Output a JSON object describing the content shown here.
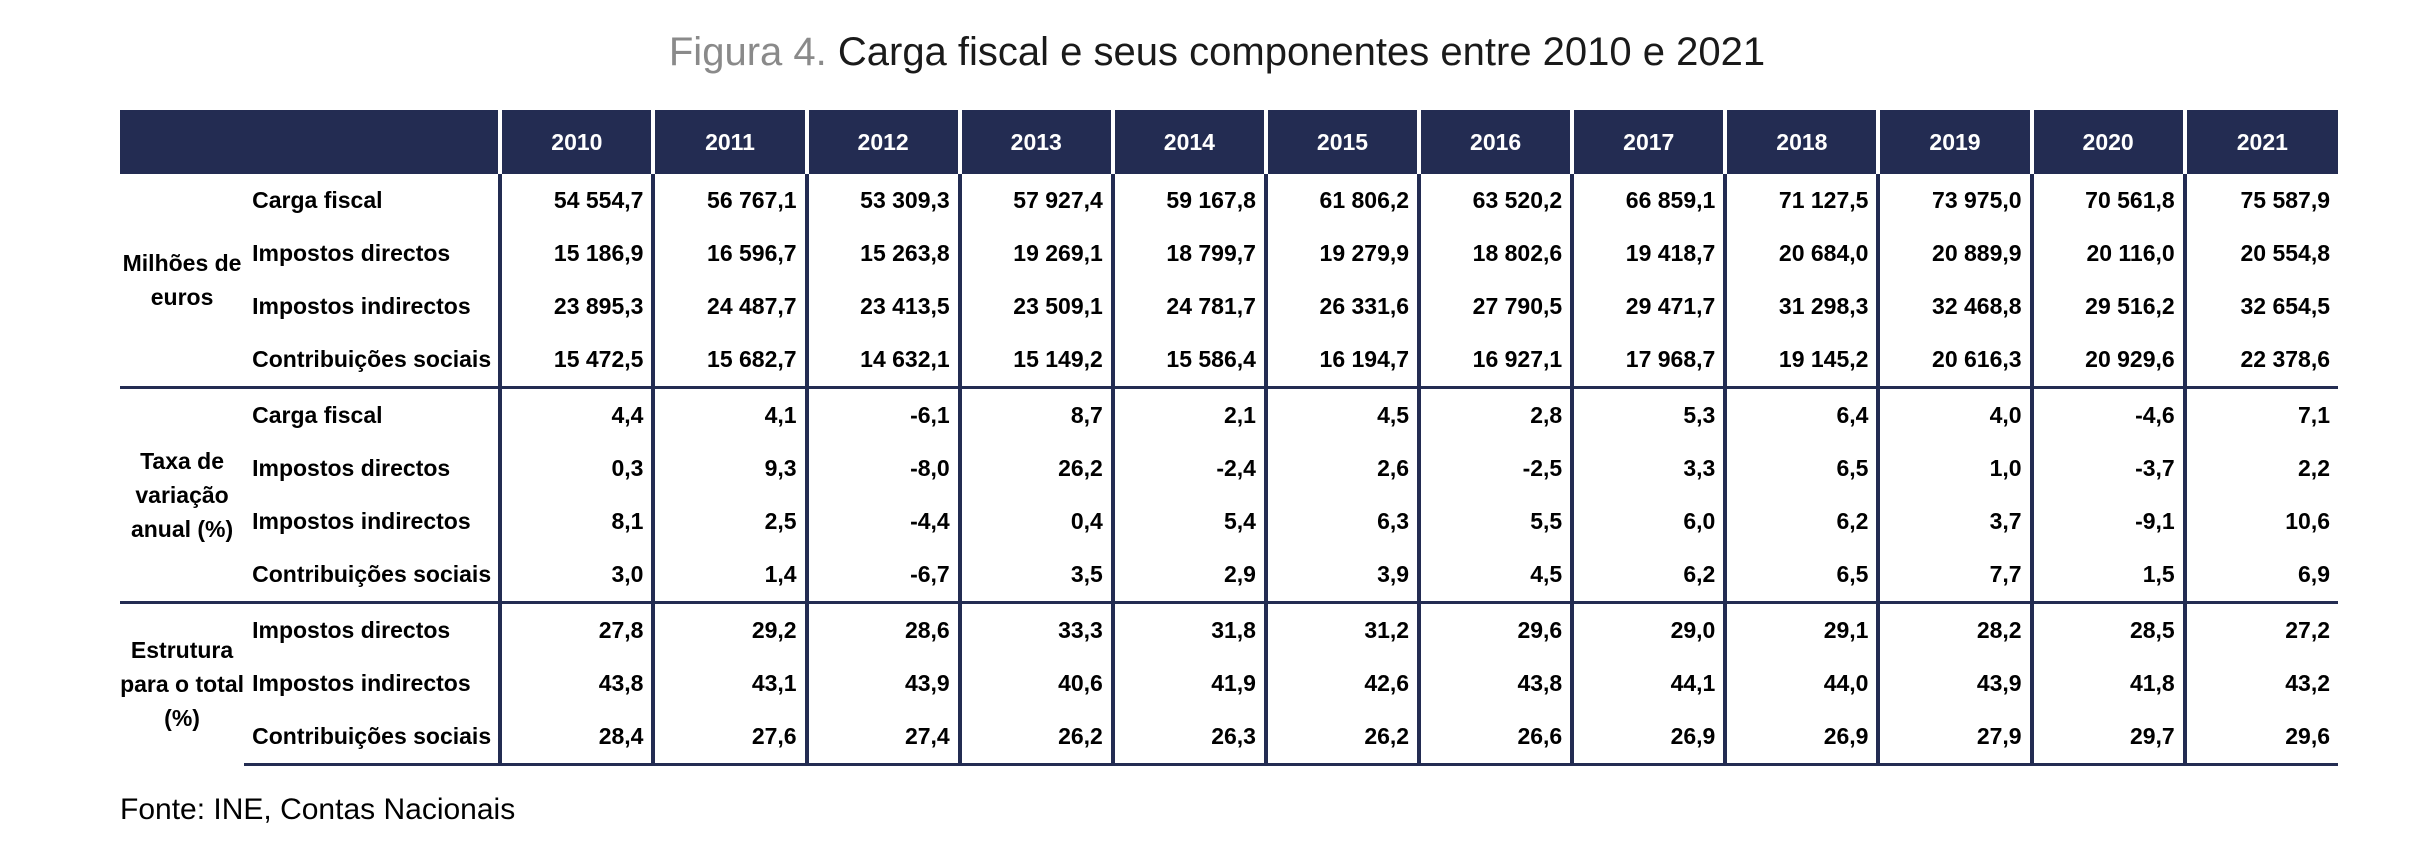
{
  "chart_data": {
    "type": "table",
    "title_prefix": "Figura 4.",
    "title": "Carga fiscal e seus componentes entre 2010 e 2021",
    "columns": [
      "2010",
      "2011",
      "2012",
      "2013",
      "2014",
      "2015",
      "2016",
      "2017",
      "2018",
      "2019",
      "2020",
      "2021"
    ],
    "groups": [
      {
        "label": "Milhões de euros",
        "rows": [
          {
            "label": "Carga fiscal",
            "values": [
              "54 554,7",
              "56 767,1",
              "53 309,3",
              "57 927,4",
              "59 167,8",
              "61 806,2",
              "63 520,2",
              "66 859,1",
              "71 127,5",
              "73 975,0",
              "70 561,8",
              "75 587,9"
            ]
          },
          {
            "label": "Impostos directos",
            "values": [
              "15 186,9",
              "16 596,7",
              "15 263,8",
              "19 269,1",
              "18 799,7",
              "19 279,9",
              "18 802,6",
              "19 418,7",
              "20 684,0",
              "20 889,9",
              "20 116,0",
              "20 554,8"
            ]
          },
          {
            "label": "Impostos indirectos",
            "values": [
              "23 895,3",
              "24 487,7",
              "23 413,5",
              "23 509,1",
              "24 781,7",
              "26 331,6",
              "27 790,5",
              "29 471,7",
              "31 298,3",
              "32 468,8",
              "29 516,2",
              "32 654,5"
            ]
          },
          {
            "label": "Contribuições sociais",
            "values": [
              "15 472,5",
              "15 682,7",
              "14 632,1",
              "15 149,2",
              "15 586,4",
              "16 194,7",
              "16 927,1",
              "17 968,7",
              "19 145,2",
              "20 616,3",
              "20 929,6",
              "22 378,6"
            ]
          }
        ]
      },
      {
        "label": "Taxa de variação anual (%)",
        "rows": [
          {
            "label": "Carga fiscal",
            "values": [
              "4,4",
              "4,1",
              "-6,1",
              "8,7",
              "2,1",
              "4,5",
              "2,8",
              "5,3",
              "6,4",
              "4,0",
              "-4,6",
              "7,1"
            ]
          },
          {
            "label": "Impostos directos",
            "values": [
              "0,3",
              "9,3",
              "-8,0",
              "26,2",
              "-2,4",
              "2,6",
              "-2,5",
              "3,3",
              "6,5",
              "1,0",
              "-3,7",
              "2,2"
            ]
          },
          {
            "label": "Impostos indirectos",
            "values": [
              "8,1",
              "2,5",
              "-4,4",
              "0,4",
              "5,4",
              "6,3",
              "5,5",
              "6,0",
              "6,2",
              "3,7",
              "-9,1",
              "10,6"
            ]
          },
          {
            "label": "Contribuições sociais",
            "values": [
              "3,0",
              "1,4",
              "-6,7",
              "3,5",
              "2,9",
              "3,9",
              "4,5",
              "6,2",
              "6,5",
              "7,7",
              "1,5",
              "6,9"
            ]
          }
        ]
      },
      {
        "label": "Estrutura para o total (%)",
        "rows": [
          {
            "label": "Impostos directos",
            "values": [
              "27,8",
              "29,2",
              "28,6",
              "33,3",
              "31,8",
              "31,2",
              "29,6",
              "29,0",
              "29,1",
              "28,2",
              "28,5",
              "27,2"
            ]
          },
          {
            "label": "Impostos indirectos",
            "values": [
              "43,8",
              "43,1",
              "43,9",
              "40,6",
              "41,9",
              "42,6",
              "43,8",
              "44,1",
              "44,0",
              "43,9",
              "41,8",
              "43,2"
            ]
          },
          {
            "label": "Contribuições sociais",
            "values": [
              "28,4",
              "27,6",
              "27,4",
              "26,2",
              "26,3",
              "26,2",
              "26,6",
              "26,9",
              "26,9",
              "27,9",
              "29,7",
              "29,6"
            ]
          }
        ]
      }
    ]
  },
  "source": {
    "prefix": "Fonte:",
    "text": "INE, Contas Nacionais"
  },
  "colors": {
    "header_bg": "#232c52",
    "header_text": "#ffffff",
    "title_prefix": "#8a8a8a"
  }
}
